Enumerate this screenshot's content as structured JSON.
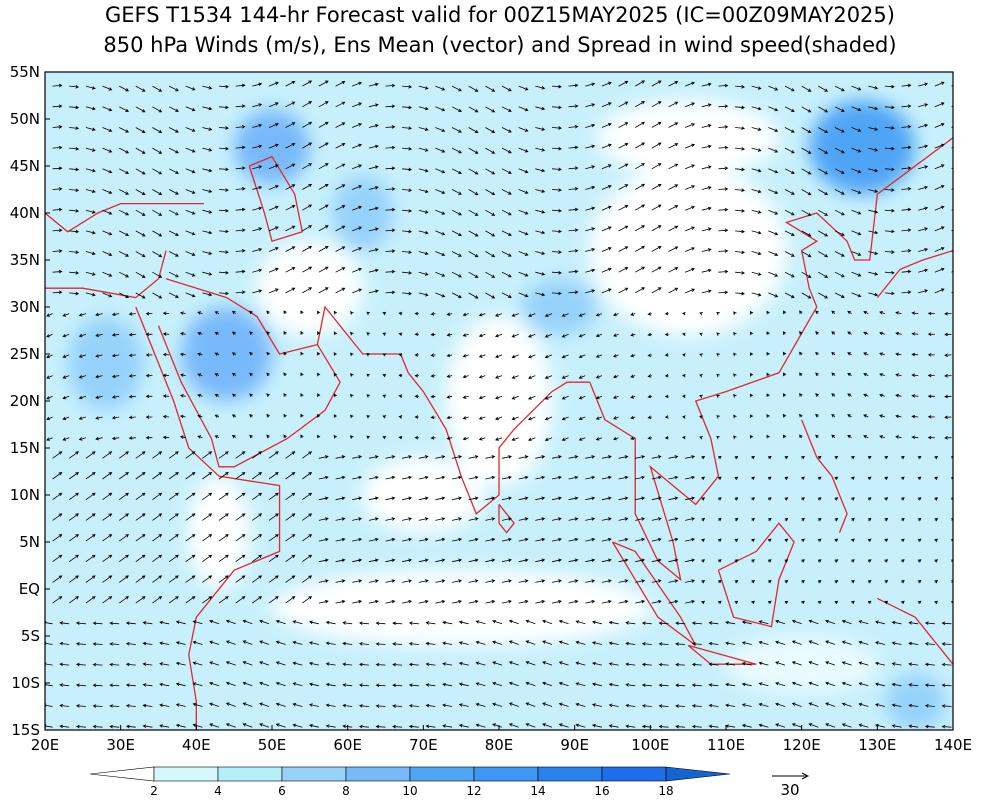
{
  "title": {
    "line1": "GEFS T1534 144-hr Forecast valid for 00Z15MAY2025 (IC=00Z09MAY2025)",
    "line2": "850 hPa Winds (m/s), Ens Mean (vector) and Spread in wind speed(shaded)"
  },
  "lat_labels": [
    "55N",
    "50N",
    "45N",
    "40N",
    "35N",
    "30N",
    "25N",
    "20N",
    "15N",
    "10N",
    "5N",
    "EQ",
    "5S",
    "10S",
    "15S"
  ],
  "lon_labels": [
    "20E",
    "30E",
    "40E",
    "50E",
    "60E",
    "70E",
    "80E",
    "90E",
    "100E",
    "110E",
    "120E",
    "130E",
    "140E"
  ],
  "colorbar": {
    "labels": [
      2,
      4,
      6,
      8,
      10,
      12,
      14,
      16,
      18
    ]
  },
  "reference_vector": {
    "label": "30"
  }
}
